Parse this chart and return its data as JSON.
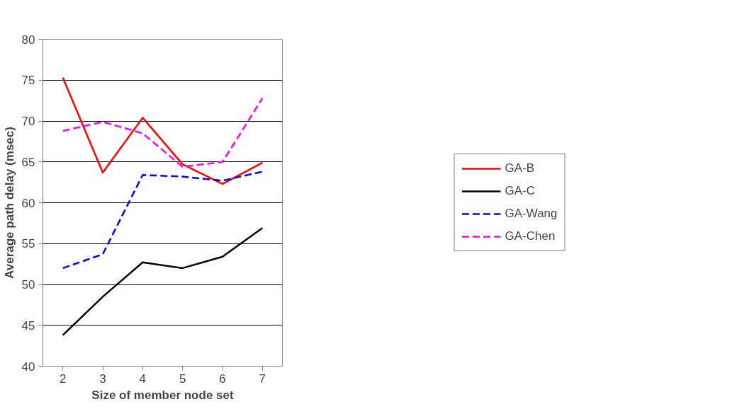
{
  "chart_data": {
    "type": "line",
    "xlabel": "Size of member node set",
    "ylabel": "Average path delay (msec)",
    "categories": [
      "2",
      "3",
      "4",
      "5",
      "6",
      "7"
    ],
    "ylim": [
      40,
      80
    ],
    "yticks": [
      40,
      45,
      50,
      55,
      60,
      65,
      70,
      75,
      80
    ],
    "grid": "y",
    "legend": "right",
    "series": [
      {
        "name": "GA-B",
        "color": "#ff0000",
        "line_style": "solid",
        "values": [
          75.3,
          63.7,
          70.4,
          64.7,
          62.3,
          64.9
        ]
      },
      {
        "name": "GA-C",
        "color": "#000000",
        "line_style": "solid",
        "values": [
          43.8,
          48.5,
          52.7,
          52.0,
          53.4,
          56.9
        ]
      },
      {
        "name": "GA-Wang",
        "color": "#0000ff",
        "line_style": "dashed",
        "values": [
          52.0,
          53.7,
          63.4,
          63.2,
          62.7,
          63.8
        ]
      },
      {
        "name": "GA-Chen",
        "color": "#ff00ff",
        "line_style": "dashed",
        "values": [
          68.8,
          69.9,
          68.5,
          64.4,
          65.0,
          72.8
        ]
      }
    ]
  }
}
